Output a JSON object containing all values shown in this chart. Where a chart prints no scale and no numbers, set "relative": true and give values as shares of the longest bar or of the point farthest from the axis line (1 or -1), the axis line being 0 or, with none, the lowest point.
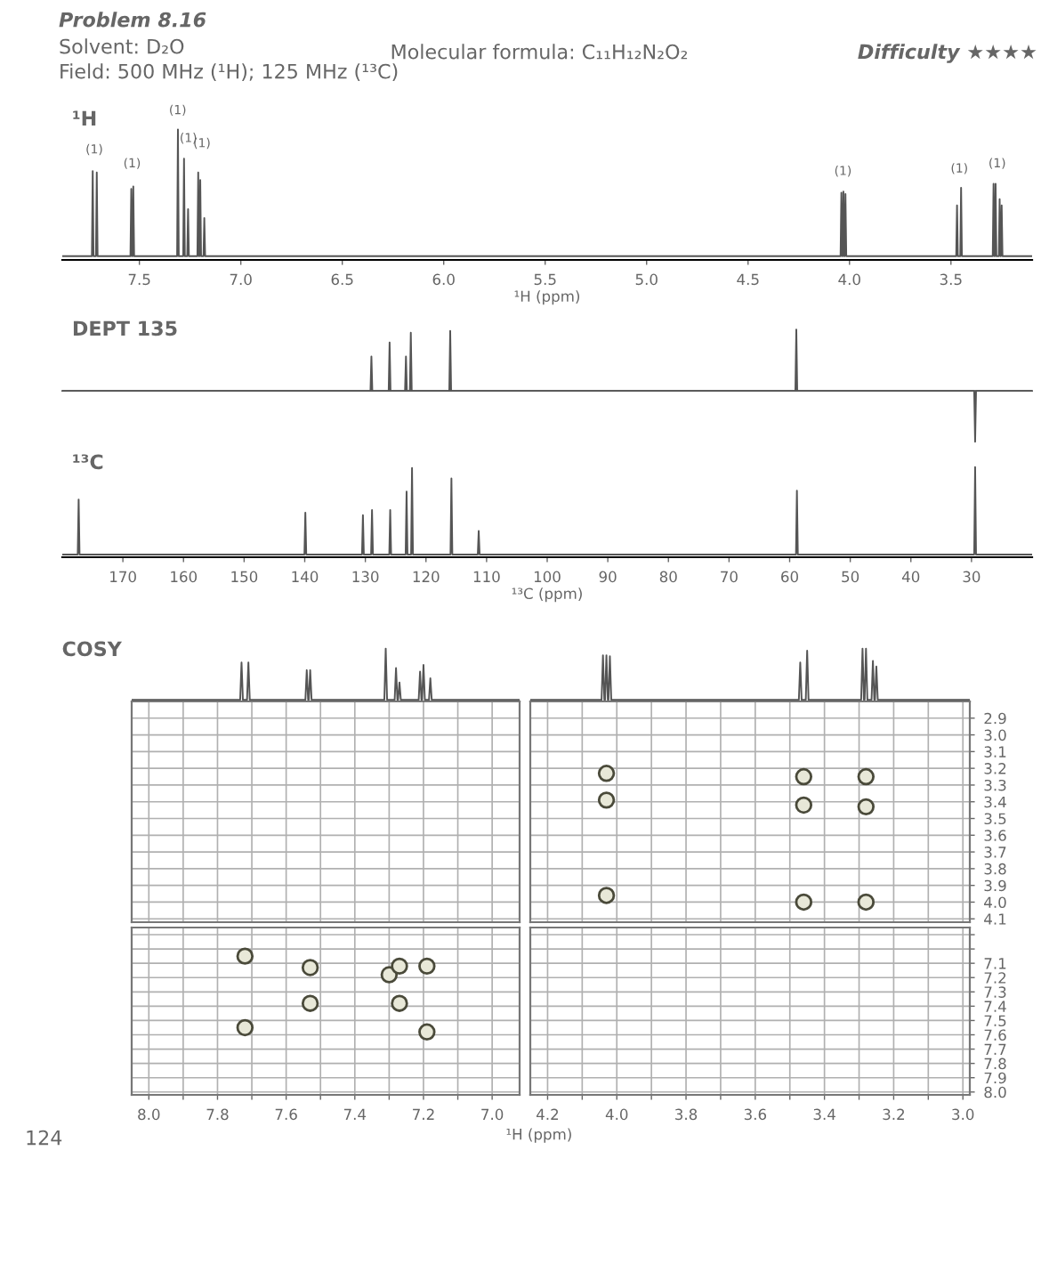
{
  "chart_data": [
    {
      "type": "line",
      "title": "¹H",
      "xlabel": "¹H (ppm)",
      "relative": true,
      "xlim": [
        7.88,
        3.1
      ],
      "xticks": [
        7.5,
        {
          "value": 7,
          "label": "7.0"
        },
        6.5,
        {
          "value": 6,
          "label": "6.0"
        },
        5.5,
        {
          "value": 5,
          "label": "5.0"
        },
        4.5,
        {
          "value": 4,
          "label": "4.0"
        },
        3.5
      ],
      "series": [
        {
          "color": "#555555",
          "x": [
            7.88,
            7.734,
            7.73,
            7.726,
            7.714,
            7.71,
            7.706,
            7.544,
            7.54,
            7.536,
            7.534,
            7.53,
            7.526,
            7.314,
            7.31,
            7.306,
            7.284,
            7.28,
            7.276,
            7.264,
            7.26,
            7.256,
            7.214,
            7.21,
            7.206,
            7.204,
            7.2,
            7.196,
            7.184,
            7.18,
            7.176,
            4.044,
            4.04,
            4.036,
            4.034,
            4.03,
            4.026,
            4.024,
            4.02,
            4.016,
            3.474,
            3.47,
            3.466,
            3.454,
            3.45,
            3.446,
            3.294,
            3.29,
            3.286,
            3.284,
            3.28,
            3.276,
            3.264,
            3.26,
            3.256,
            3.254,
            3.25,
            3.246,
            3.1
          ],
          "values": [
            0,
            0,
            0.67,
            0,
            0,
            0.66,
            0,
            0,
            0.53,
            0,
            0,
            0.55,
            0,
            0,
            1,
            0,
            0,
            0.77,
            0,
            0,
            0.37,
            0,
            0,
            0.66,
            0,
            0,
            0.6,
            0,
            0,
            0.3,
            0,
            0,
            0.5,
            0,
            0,
            0.51,
            0,
            0,
            0.49,
            0,
            0,
            0.4,
            0,
            0,
            0.54,
            0,
            0,
            0.57,
            0,
            0,
            0.57,
            0,
            0,
            0.45,
            0,
            0,
            0.4,
            0,
            0
          ]
        }
      ],
      "annotations": [
        "Problem 8.16",
        "Solvent: D₂O",
        "Field: 500 MHz (¹H); 125 MHz (¹³C)",
        "Molecular formula: C₁₁H₁₂N₂O₂",
        "Difficulty ★★★★",
        "124",
        "(1)",
        "(1)",
        "(1)",
        "(1)",
        "(1)",
        "(1)",
        "(1)",
        "(1)"
      ]
    },
    {
      "type": "line",
      "title": "DEPT 135",
      "relative": true,
      "xlim": [
        180,
        20
      ],
      "tick_labels": false,
      "series": [
        {
          "color": "#555555",
          "x": [
            180,
            129.15,
            129,
            128.85,
            126.15,
            126,
            125.85,
            123.45,
            123.3,
            123.15,
            122.65,
            122.5,
            122.35,
            116.15,
            116,
            115.85,
            59.05,
            58.9,
            58.75,
            29.55,
            29.4,
            29.25,
            20
          ],
          "values": [
            0,
            0,
            0.56,
            0,
            0,
            0.79,
            0,
            0,
            0.56,
            0,
            0,
            0.95,
            0,
            0,
            0.98,
            0,
            0,
            1,
            0,
            0,
            -0.83,
            0,
            0
          ]
        }
      ]
    },
    {
      "type": "line",
      "title": "¹³C",
      "xlabel": "¹³C (ppm)",
      "relative": true,
      "xlim": [
        180,
        20
      ],
      "xticks": [
        170,
        160,
        150,
        140,
        130,
        120,
        110,
        100,
        90,
        80,
        70,
        60,
        50,
        40,
        30
      ],
      "series": [
        {
          "color": "#555555",
          "x": [
            180,
            177.45,
            177.3,
            177.15,
            140.05,
            139.9,
            139.75,
            130.55,
            130.4,
            130.25,
            129.05,
            128.9,
            128.75,
            126.05,
            125.9,
            125.75,
            123.35,
            123.2,
            123.05,
            122.45,
            122.3,
            122.15,
            115.95,
            115.8,
            115.65,
            111.45,
            111.3,
            111.15,
            58.95,
            58.8,
            58.65,
            29.55,
            29.4,
            29.25,
            20
          ],
          "values": [
            0,
            0,
            0.63,
            0,
            0,
            0.48,
            0,
            0,
            0.45,
            0,
            0,
            0.51,
            0,
            0,
            0.51,
            0,
            0,
            0.72,
            0,
            0,
            0.99,
            0,
            0,
            0.87,
            0,
            0,
            0.27,
            0,
            0,
            0.73,
            0,
            0,
            1,
            0,
            0
          ]
        }
      ]
    },
    {
      "type": "line",
      "title": "COSY",
      "relative": true,
      "xlim": [
        8.05,
        6.92
      ],
      "tick_labels": false,
      "series": [
        {
          "color": "#555555",
          "x": [
            8.05,
            7.734,
            7.73,
            7.726,
            7.714,
            7.71,
            7.706,
            7.544,
            7.54,
            7.536,
            7.534,
            7.53,
            7.526,
            7.314,
            7.31,
            7.306,
            7.284,
            7.28,
            7.276,
            7.274,
            7.27,
            7.266,
            7.214,
            7.21,
            7.206,
            7.204,
            7.2,
            7.196,
            7.184,
            7.18,
            7.176,
            6.92
          ],
          "values": [
            0,
            0,
            0.73,
            0,
            0,
            0.73,
            0,
            0,
            0.58,
            0,
            0,
            0.58,
            0,
            0,
            1,
            0,
            0,
            0.62,
            0,
            0,
            0.34,
            0,
            0,
            0.55,
            0,
            0,
            0.68,
            0,
            0,
            0.42,
            0,
            0
          ]
        }
      ]
    },
    {
      "type": "line",
      "relative": true,
      "xlim": [
        4.25,
        2.98
      ],
      "tick_labels": false,
      "series": [
        {
          "color": "#555555",
          "x": [
            4.25,
            4.044,
            4.04,
            4.036,
            4.034,
            4.03,
            4.026,
            4.024,
            4.02,
            4.016,
            3.474,
            3.47,
            3.466,
            3.454,
            3.45,
            3.446,
            3.294,
            3.29,
            3.286,
            3.284,
            3.28,
            3.276,
            3.264,
            3.26,
            3.256,
            3.254,
            3.25,
            3.246,
            2.98
          ],
          "values": [
            0,
            0,
            0.87,
            0,
            0,
            0.87,
            0,
            0,
            0.85,
            0,
            0,
            0.73,
            0,
            0,
            0.96,
            0,
            0,
            1,
            0,
            0,
            1,
            0,
            0,
            0.76,
            0,
            0,
            0.65,
            0,
            0
          ]
        }
      ]
    },
    {
      "type": "scatter",
      "xlim": [
        8.05,
        6.92
      ],
      "ylim": [
        4.12,
        2.8
      ],
      "xticks": [
        8.0,
        7.9,
        7.8,
        7.7,
        7.6,
        7.5,
        7.4,
        7.3,
        7.2,
        7.1,
        7.0
      ],
      "yticks": [
        2.9,
        3.0,
        3.1,
        3.2,
        3.3,
        3.4,
        3.5,
        3.6,
        3.7,
        3.8,
        3.9,
        4.0,
        4.1
      ],
      "tick_labels": false,
      "grid": true
    },
    {
      "type": "scatter",
      "xlim": [
        4.25,
        2.98
      ],
      "ylim": [
        4.12,
        2.8
      ],
      "xticks": [
        4.2,
        4.1,
        4.0,
        3.9,
        3.8,
        3.7,
        3.6,
        3.5,
        3.4,
        3.3,
        3.2,
        3.1,
        3.0
      ],
      "yticks": [
        2.9,
        {
          "value": 3,
          "label": "3.0"
        },
        3.1,
        3.2,
        3.3,
        3.4,
        3.5,
        3.6,
        3.7,
        3.8,
        3.9,
        {
          "value": 4,
          "label": "4.0"
        },
        4.1
      ],
      "tick_labels": "y",
      "grid": true,
      "marker": "circle",
      "series": [
        {
          "color": "#4a4a3a",
          "x": [
            4.03,
            4.03,
            4.03,
            3.46,
            3.46,
            3.46,
            3.28,
            3.28,
            3.28
          ],
          "values": [
            3.23,
            3.39,
            3.96,
            3.25,
            3.42,
            4.0,
            3.25,
            3.43,
            4.0
          ]
        }
      ]
    },
    {
      "type": "scatter",
      "xlim": [
        8.05,
        6.92
      ],
      "ylim": [
        8.02,
        6.85
      ],
      "xticks": [
        {
          "value": 8,
          "label": "8.0"
        },
        {
          "value": 7.9,
          "label": null
        },
        7.8,
        {
          "value": 7.7,
          "label": null
        },
        7.6,
        {
          "value": 7.5,
          "label": null
        },
        7.4,
        {
          "value": 7.3,
          "label": null
        },
        7.2,
        {
          "value": 7.1,
          "label": null
        },
        {
          "value": 7,
          "label": "7.0"
        }
      ],
      "yticks": [
        6.9,
        7.0,
        7.1,
        7.2,
        7.3,
        7.4,
        7.5,
        7.6,
        7.7,
        7.8,
        7.9,
        8.0
      ],
      "tick_labels": "x",
      "grid": true,
      "marker": "circle",
      "series": [
        {
          "color": "#4a4a3a",
          "x": [
            7.72,
            7.53,
            7.3,
            7.27,
            7.19,
            7.53,
            7.27,
            7.72,
            7.19
          ],
          "values": [
            7.05,
            7.13,
            7.18,
            7.12,
            7.12,
            7.38,
            7.38,
            7.55,
            7.58
          ]
        }
      ]
    },
    {
      "type": "scatter",
      "xlabel": "¹H (ppm)",
      "xlim": [
        4.25,
        2.98
      ],
      "ylim": [
        8.02,
        6.85
      ],
      "xticks": [
        4.2,
        {
          "value": 4.1,
          "label": null
        },
        {
          "value": 4,
          "label": "4.0"
        },
        {
          "value": 3.9,
          "label": null
        },
        3.8,
        {
          "value": 3.7,
          "label": null
        },
        3.6,
        {
          "value": 3.5,
          "label": null
        },
        3.4,
        {
          "value": 3.3,
          "label": null
        },
        3.2,
        {
          "value": 3.1,
          "label": null
        },
        {
          "value": 3,
          "label": "3.0"
        }
      ],
      "yticks": [
        {
          "value": 6.9,
          "label": null
        },
        {
          "value": 7.0,
          "label": null
        },
        7.1,
        7.2,
        7.3,
        7.4,
        7.5,
        7.6,
        7.7,
        7.8,
        7.9,
        {
          "value": 8,
          "label": "8.0"
        }
      ],
      "grid": true
    }
  ]
}
